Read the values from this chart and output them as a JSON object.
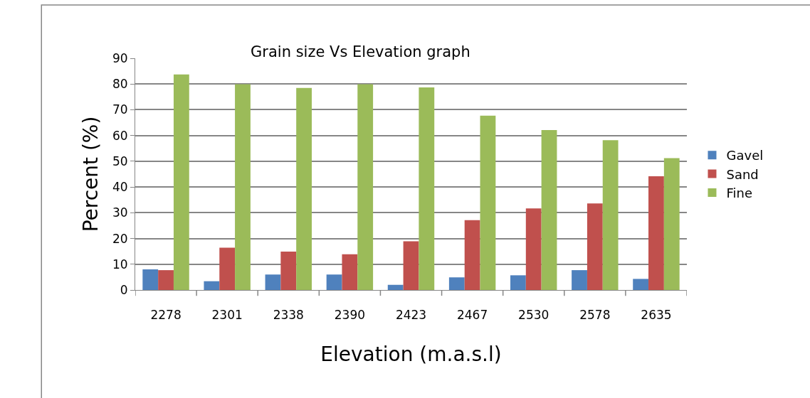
{
  "chart_data": {
    "type": "bar",
    "title": "Grain size Vs Elevation graph",
    "xlabel": "Elevation (m.a.s.l)",
    "ylabel": "Percent (%)",
    "categories": [
      "2278",
      "2301",
      "2338",
      "2390",
      "2423",
      "2467",
      "2530",
      "2578",
      "2635"
    ],
    "series": [
      {
        "name": "Gavel",
        "color": "#4f81bd",
        "values": [
          8.0,
          3.4,
          6.0,
          6.0,
          2.0,
          4.9,
          5.7,
          7.7,
          4.3
        ]
      },
      {
        "name": "Sand",
        "color": "#c0504d",
        "values": [
          7.7,
          16.4,
          14.9,
          13.9,
          18.9,
          27.1,
          31.7,
          33.6,
          44.2
        ]
      },
      {
        "name": "Fine",
        "color": "#9bbb59",
        "values": [
          83.7,
          79.9,
          78.5,
          79.9,
          78.7,
          67.7,
          62.1,
          58.2,
          51.2
        ]
      }
    ],
    "ylim": [
      0,
      90
    ],
    "yticks": [
      0,
      10,
      20,
      30,
      40,
      50,
      60,
      70,
      80,
      90
    ],
    "grid": "y",
    "legend": "right"
  }
}
